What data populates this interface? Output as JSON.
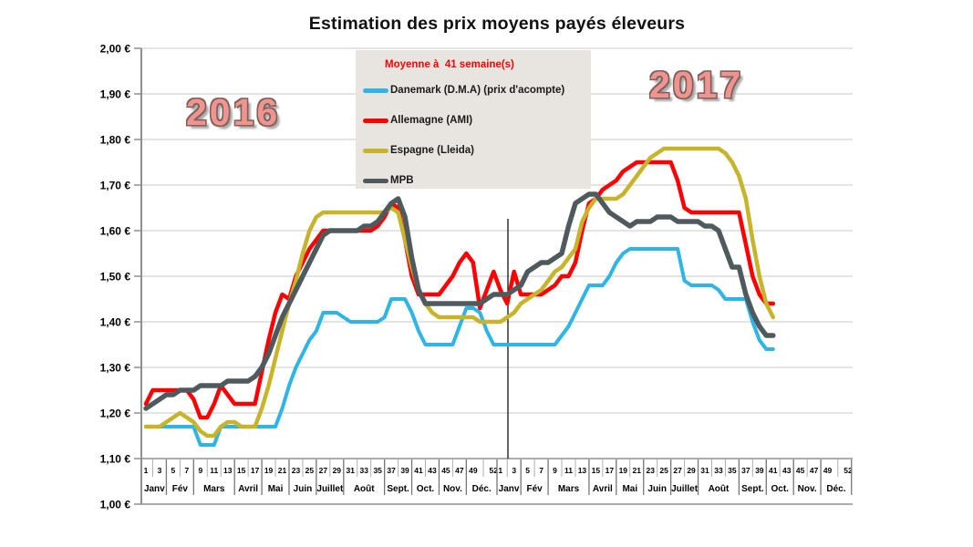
{
  "title": "Estimation des prix moyens payés éleveurs",
  "legend": {
    "title": "Moyenne à  41 semaine(s)",
    "items": [
      {
        "label": "Danemark (D.M.A) (prix d'acompte)",
        "color": "#2EB5E8"
      },
      {
        "label": "Allemagne (AMI)",
        "color": "#FE0000"
      },
      {
        "label": "Espagne (Lleida)",
        "color": "#C7B42B"
      },
      {
        "label": "MPB",
        "color": "#4E5A5D"
      }
    ]
  },
  "annotations": [
    {
      "text": "2016"
    },
    {
      "text": "2017"
    }
  ],
  "chart_data": {
    "type": "line",
    "title": "Estimation des prix moyens payés éleveurs",
    "legend_title": "Moyenne à  41 semaine(s)",
    "legend_position": "top-center",
    "grid": "horizontal",
    "currency": "EUR",
    "y_axis": {
      "min": 1.0,
      "max": 2.0,
      "step": 0.1,
      "tick_labels": [
        "2,00 €",
        "1,90 €",
        "1,80 €",
        "1,70 €",
        "1,60 €",
        "1,50 €",
        "1,40 €",
        "1,30 €",
        "1,20 €",
        "1,10 €",
        "1,00 €"
      ]
    },
    "x_axis": {
      "years": [
        "2016",
        "2017"
      ],
      "weeks_per_year": 52,
      "week_tick_labels": [
        "1",
        "3",
        "5",
        "7",
        "9",
        "11",
        "13",
        "15",
        "17",
        "19",
        "21",
        "23",
        "25",
        "27",
        "29",
        "31",
        "33",
        "35",
        "37",
        "39",
        "41",
        "43",
        "45",
        "47",
        "49",
        "52"
      ],
      "months": [
        "Janv",
        "Fév",
        "Mars",
        "Avril",
        "Mai",
        "Juin",
        "Juillet",
        "Août",
        "Sept.",
        "Oct.",
        "Nov.",
        "Déc."
      ],
      "month_start_weeks": [
        1,
        5,
        9,
        15,
        19,
        23,
        27,
        31,
        37,
        41,
        45,
        49
      ],
      "data_ends": "2017 semaine 41"
    },
    "series": [
      {
        "name": "Danemark (D.M.A) (prix d'acompte)",
        "color": "#2EB5E8",
        "width": 4,
        "values": [
          1.17,
          1.17,
          1.17,
          1.17,
          1.17,
          1.17,
          1.17,
          1.17,
          1.13,
          1.13,
          1.13,
          1.17,
          1.17,
          1.17,
          1.17,
          1.17,
          1.17,
          1.17,
          1.17,
          1.17,
          1.21,
          1.26,
          1.3,
          1.33,
          1.36,
          1.38,
          1.42,
          1.42,
          1.42,
          1.41,
          1.4,
          1.4,
          1.4,
          1.4,
          1.4,
          1.41,
          1.45,
          1.45,
          1.45,
          1.42,
          1.38,
          1.35,
          1.35,
          1.35,
          1.35,
          1.35,
          1.39,
          1.43,
          1.43,
          1.42,
          1.38,
          1.35,
          1.35,
          1.35,
          1.35,
          1.35,
          1.35,
          1.35,
          1.35,
          1.35,
          1.35,
          1.37,
          1.39,
          1.42,
          1.45,
          1.48,
          1.48,
          1.48,
          1.5,
          1.53,
          1.55,
          1.56,
          1.56,
          1.56,
          1.56,
          1.56,
          1.56,
          1.56,
          1.56,
          1.49,
          1.48,
          1.48,
          1.48,
          1.48,
          1.47,
          1.45,
          1.45,
          1.45,
          1.45,
          1.4,
          1.36,
          1.34,
          1.34
        ]
      },
      {
        "name": "Allemagne (AMI)",
        "color": "#FE0000",
        "width": 4.5,
        "values": [
          1.22,
          1.25,
          1.25,
          1.25,
          1.25,
          1.25,
          1.25,
          1.23,
          1.19,
          1.19,
          1.22,
          1.26,
          1.24,
          1.22,
          1.22,
          1.22,
          1.22,
          1.29,
          1.36,
          1.42,
          1.46,
          1.45,
          1.5,
          1.53,
          1.56,
          1.58,
          1.6,
          1.6,
          1.6,
          1.6,
          1.6,
          1.6,
          1.6,
          1.6,
          1.61,
          1.63,
          1.66,
          1.65,
          1.58,
          1.5,
          1.46,
          1.46,
          1.46,
          1.46,
          1.48,
          1.5,
          1.53,
          1.55,
          1.53,
          1.43,
          1.47,
          1.51,
          1.47,
          1.44,
          1.51,
          1.46,
          1.46,
          1.46,
          1.46,
          1.47,
          1.48,
          1.5,
          1.5,
          1.53,
          1.6,
          1.66,
          1.67,
          1.69,
          1.7,
          1.71,
          1.73,
          1.74,
          1.75,
          1.75,
          1.75,
          1.75,
          1.75,
          1.75,
          1.71,
          1.65,
          1.64,
          1.64,
          1.64,
          1.64,
          1.64,
          1.64,
          1.64,
          1.64,
          1.57,
          1.5,
          1.46,
          1.44,
          1.44
        ]
      },
      {
        "name": "Espagne (Lleida)",
        "color": "#C7B42B",
        "width": 4.5,
        "values": [
          1.17,
          1.17,
          1.17,
          1.18,
          1.19,
          1.2,
          1.19,
          1.18,
          1.16,
          1.15,
          1.15,
          1.17,
          1.18,
          1.18,
          1.17,
          1.17,
          1.17,
          1.21,
          1.26,
          1.32,
          1.38,
          1.44,
          1.49,
          1.55,
          1.6,
          1.63,
          1.64,
          1.64,
          1.64,
          1.64,
          1.64,
          1.64,
          1.64,
          1.64,
          1.64,
          1.64,
          1.65,
          1.64,
          1.58,
          1.52,
          1.47,
          1.44,
          1.42,
          1.41,
          1.41,
          1.41,
          1.41,
          1.41,
          1.41,
          1.4,
          1.4,
          1.4,
          1.4,
          1.41,
          1.42,
          1.44,
          1.45,
          1.46,
          1.47,
          1.49,
          1.51,
          1.52,
          1.54,
          1.56,
          1.62,
          1.65,
          1.67,
          1.67,
          1.67,
          1.67,
          1.68,
          1.7,
          1.72,
          1.74,
          1.76,
          1.77,
          1.78,
          1.78,
          1.78,
          1.78,
          1.78,
          1.78,
          1.78,
          1.78,
          1.78,
          1.77,
          1.75,
          1.72,
          1.67,
          1.58,
          1.5,
          1.44,
          1.41
        ]
      },
      {
        "name": "MPB",
        "color": "#4E5A5D",
        "width": 5.5,
        "values": [
          1.21,
          1.22,
          1.23,
          1.24,
          1.24,
          1.25,
          1.25,
          1.25,
          1.26,
          1.26,
          1.26,
          1.26,
          1.27,
          1.27,
          1.27,
          1.27,
          1.28,
          1.3,
          1.33,
          1.37,
          1.41,
          1.44,
          1.47,
          1.5,
          1.53,
          1.56,
          1.59,
          1.6,
          1.6,
          1.6,
          1.6,
          1.6,
          1.61,
          1.61,
          1.62,
          1.64,
          1.66,
          1.67,
          1.63,
          1.54,
          1.47,
          1.44,
          1.44,
          1.44,
          1.44,
          1.44,
          1.44,
          1.44,
          1.44,
          1.44,
          1.45,
          1.46,
          1.46,
          1.46,
          1.47,
          1.48,
          1.51,
          1.52,
          1.53,
          1.53,
          1.54,
          1.55,
          1.61,
          1.66,
          1.67,
          1.68,
          1.68,
          1.66,
          1.64,
          1.63,
          1.62,
          1.61,
          1.62,
          1.62,
          1.62,
          1.63,
          1.63,
          1.63,
          1.62,
          1.62,
          1.62,
          1.62,
          1.61,
          1.61,
          1.6,
          1.56,
          1.52,
          1.52,
          1.46,
          1.42,
          1.39,
          1.37,
          1.37
        ]
      }
    ]
  }
}
